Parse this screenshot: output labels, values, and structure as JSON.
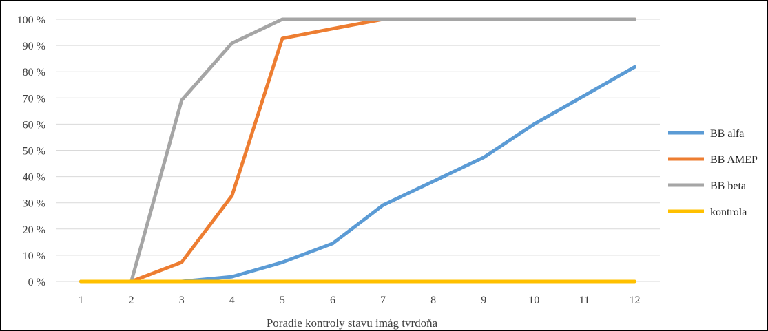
{
  "chart_data": {
    "type": "line",
    "xlabel": "Poradie kontroly stavu imág tvrdoňa",
    "ylabel": "",
    "x": [
      "1",
      "2",
      "3",
      "4",
      "5",
      "6",
      "7",
      "8",
      "9",
      "10",
      "11",
      "12"
    ],
    "ylim": [
      0,
      100
    ],
    "ytick_labels": [
      "0 %",
      "10 %",
      "20 %",
      "30 %",
      "40 %",
      "50 %",
      "60 %",
      "70 %",
      "80 %",
      "90 %",
      "100 %"
    ],
    "grid": true,
    "legend_position": "right",
    "series": [
      {
        "name": "BB alfa",
        "color": "#5B9BD5",
        "values": [
          0,
          0,
          0,
          1.8,
          7.3,
          14.5,
          29.1,
          38.2,
          47.3,
          60.0,
          70.9,
          81.8
        ]
      },
      {
        "name": "BB AMEP",
        "color": "#ED7D31",
        "values": [
          0,
          0,
          7.3,
          32.7,
          92.7,
          96.4,
          100,
          100,
          100,
          100,
          100,
          100
        ]
      },
      {
        "name": "BB beta",
        "color": "#A5A5A5",
        "values": [
          0,
          0,
          69.1,
          90.9,
          100,
          100,
          100,
          100,
          100,
          100,
          100,
          100
        ]
      },
      {
        "name": "kontrola",
        "color": "#FFC000",
        "values": [
          0,
          0,
          0,
          0,
          0,
          0,
          0,
          0,
          0,
          0,
          0,
          0
        ]
      }
    ]
  }
}
